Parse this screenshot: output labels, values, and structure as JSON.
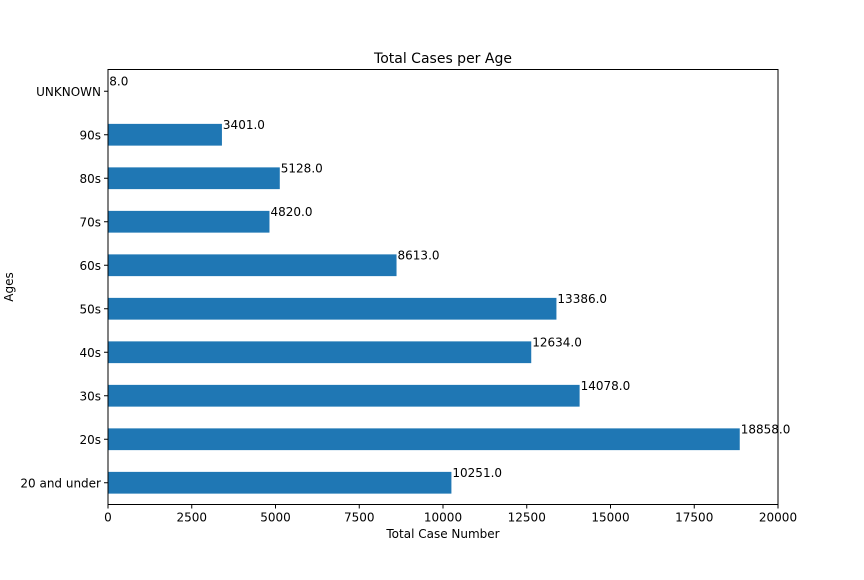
{
  "chart_data": {
    "type": "bar",
    "orientation": "horizontal",
    "title": "Total Cases per Age",
    "xlabel": "Total Case Number",
    "ylabel": "Ages",
    "categories": [
      "20 and under",
      "20s",
      "30s",
      "40s",
      "50s",
      "60s",
      "70s",
      "80s",
      "90s",
      "UNKNOWN"
    ],
    "values": [
      10251,
      18858,
      14078,
      12634,
      13386,
      8613,
      4820,
      5128,
      3401,
      8
    ],
    "value_labels": [
      "10251.0",
      "18858.0",
      "14078.0",
      "12634.0",
      "13386.0",
      "8613.0",
      "4820.0",
      "5128.0",
      "3401.0",
      "8.0"
    ],
    "xlim": [
      0,
      20000
    ],
    "xticks": [
      0,
      2500,
      5000,
      7500,
      10000,
      12500,
      15000,
      17500,
      20000
    ],
    "grid": false,
    "legend": "none",
    "bar_color": "#1f77b4"
  }
}
